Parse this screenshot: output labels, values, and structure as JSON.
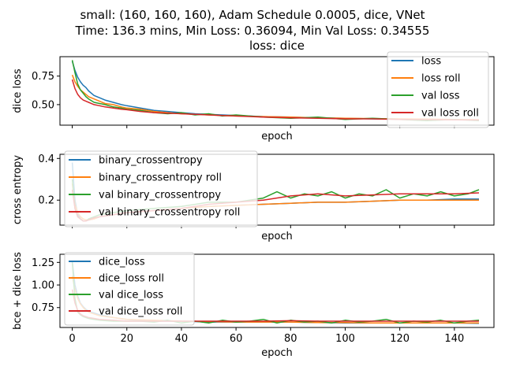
{
  "figure": {
    "title_line1": "small: (160, 160, 160), Adam Schedule 0.0005, dice, VNet",
    "title_line2": "Time: 136.3 mins, Min Loss: 0.36094, Min Val Loss: 0.34555"
  },
  "chart_data": [
    {
      "type": "line",
      "title": "loss: dice",
      "xlabel": "epoch",
      "ylabel": "dice loss",
      "xlim": [
        -4.5,
        154.5
      ],
      "ylim": [
        0.32,
        0.92
      ],
      "xticks": [
        0,
        20,
        40,
        60,
        80,
        100,
        120,
        140
      ],
      "xtick_labels": [],
      "yticks": [
        0.5,
        0.75
      ],
      "ytick_labels": [
        "0.50",
        "0.75"
      ],
      "legend_position": "top-right",
      "series": [
        {
          "name": "loss",
          "color": "#1f77b4",
          "x": [
            0,
            1,
            2,
            3,
            4,
            5,
            6,
            8,
            10,
            12,
            15,
            18,
            20,
            25,
            30,
            35,
            40,
            45,
            50,
            55,
            60,
            70,
            80,
            90,
            100,
            110,
            120,
            130,
            140,
            149
          ],
          "values": [
            0.88,
            0.8,
            0.74,
            0.7,
            0.67,
            0.65,
            0.62,
            0.58,
            0.56,
            0.54,
            0.52,
            0.5,
            0.49,
            0.47,
            0.45,
            0.44,
            0.43,
            0.42,
            0.415,
            0.41,
            0.405,
            0.395,
            0.39,
            0.385,
            0.38,
            0.375,
            0.372,
            0.37,
            0.368,
            0.365
          ]
        },
        {
          "name": "loss roll",
          "color": "#ff7f0e",
          "x": [
            0,
            1,
            2,
            3,
            4,
            5,
            6,
            8,
            10,
            12,
            15,
            18,
            20,
            25,
            30,
            35,
            40,
            45,
            50,
            55,
            60,
            70,
            80,
            90,
            100,
            110,
            120,
            130,
            140,
            149
          ],
          "values": [
            0.76,
            0.7,
            0.66,
            0.63,
            0.61,
            0.59,
            0.57,
            0.55,
            0.53,
            0.51,
            0.5,
            0.48,
            0.47,
            0.46,
            0.44,
            0.43,
            0.42,
            0.415,
            0.41,
            0.405,
            0.4,
            0.395,
            0.39,
            0.385,
            0.38,
            0.378,
            0.375,
            0.373,
            0.37,
            0.368
          ]
        },
        {
          "name": "val loss",
          "color": "#2ca02c",
          "x": [
            0,
            1,
            2,
            3,
            4,
            5,
            6,
            8,
            10,
            12,
            15,
            18,
            20,
            25,
            30,
            35,
            40,
            45,
            50,
            55,
            60,
            70,
            80,
            90,
            100,
            110,
            120,
            130,
            140,
            149
          ],
          "values": [
            0.89,
            0.78,
            0.68,
            0.63,
            0.6,
            0.57,
            0.55,
            0.52,
            0.51,
            0.5,
            0.48,
            0.47,
            0.46,
            0.45,
            0.43,
            0.42,
            0.43,
            0.41,
            0.42,
            0.4,
            0.41,
            0.39,
            0.38,
            0.39,
            0.37,
            0.38,
            0.37,
            0.36,
            0.37,
            0.36
          ]
        },
        {
          "name": "val loss roll",
          "color": "#d62728",
          "x": [
            0,
            1,
            2,
            3,
            4,
            5,
            6,
            8,
            10,
            12,
            15,
            18,
            20,
            25,
            30,
            35,
            40,
            45,
            50,
            55,
            60,
            70,
            80,
            90,
            100,
            110,
            120,
            130,
            140,
            149
          ],
          "values": [
            0.72,
            0.64,
            0.59,
            0.56,
            0.54,
            0.53,
            0.52,
            0.5,
            0.49,
            0.48,
            0.47,
            0.46,
            0.455,
            0.44,
            0.43,
            0.425,
            0.42,
            0.415,
            0.41,
            0.405,
            0.4,
            0.39,
            0.385,
            0.38,
            0.375,
            0.375,
            0.37,
            0.368,
            0.366,
            0.365
          ]
        }
      ]
    },
    {
      "type": "line",
      "title": "",
      "xlabel": "epoch",
      "ylabel": "cross entropy",
      "xlim": [
        -4.5,
        154.5
      ],
      "ylim": [
        0.08,
        0.42
      ],
      "xticks": [
        0,
        20,
        40,
        60,
        80,
        100,
        120,
        140
      ],
      "xtick_labels": [],
      "yticks": [
        0.2,
        0.4
      ],
      "ytick_labels": [
        "0.2",
        "0.4"
      ],
      "legend_position": "top-left",
      "series": [
        {
          "name": "binary_crossentropy",
          "color": "#1f77b4",
          "x": [
            0,
            1,
            2,
            3,
            4,
            5,
            6,
            8,
            10,
            15,
            20,
            30,
            40,
            50,
            60,
            70,
            80,
            90,
            100,
            110,
            120,
            130,
            140,
            149
          ],
          "values": [
            0.38,
            0.2,
            0.13,
            0.11,
            0.1,
            0.1,
            0.105,
            0.11,
            0.12,
            0.13,
            0.14,
            0.15,
            0.16,
            0.17,
            0.175,
            0.18,
            0.185,
            0.19,
            0.19,
            0.195,
            0.2,
            0.2,
            0.205,
            0.205
          ]
        },
        {
          "name": "binary_crossentropy roll",
          "color": "#ff7f0e",
          "x": [
            0,
            1,
            2,
            3,
            4,
            5,
            6,
            8,
            10,
            15,
            20,
            30,
            40,
            50,
            60,
            70,
            80,
            90,
            100,
            110,
            120,
            130,
            140,
            149
          ],
          "values": [
            0.28,
            0.18,
            0.14,
            0.12,
            0.11,
            0.105,
            0.105,
            0.11,
            0.12,
            0.13,
            0.14,
            0.15,
            0.16,
            0.17,
            0.175,
            0.18,
            0.185,
            0.19,
            0.19,
            0.195,
            0.2,
            0.2,
            0.2,
            0.2
          ]
        },
        {
          "name": "val binary_crossentropy",
          "color": "#2ca02c",
          "x": [
            0,
            1,
            2,
            3,
            4,
            5,
            6,
            8,
            10,
            15,
            20,
            30,
            40,
            50,
            60,
            70,
            75,
            80,
            85,
            90,
            95,
            100,
            105,
            110,
            115,
            120,
            125,
            130,
            135,
            140,
            145,
            149
          ],
          "values": [
            0.3,
            0.16,
            0.12,
            0.11,
            0.1,
            0.1,
            0.11,
            0.12,
            0.13,
            0.14,
            0.15,
            0.16,
            0.17,
            0.19,
            0.19,
            0.21,
            0.24,
            0.21,
            0.23,
            0.22,
            0.24,
            0.21,
            0.23,
            0.22,
            0.25,
            0.21,
            0.23,
            0.22,
            0.24,
            0.22,
            0.23,
            0.25
          ]
        },
        {
          "name": "val binary_crossentropy roll",
          "color": "#d62728",
          "x": [
            0,
            1,
            2,
            3,
            4,
            5,
            6,
            8,
            10,
            15,
            20,
            30,
            40,
            50,
            60,
            70,
            80,
            90,
            100,
            110,
            120,
            130,
            140,
            149
          ],
          "values": [
            0.25,
            0.16,
            0.12,
            0.11,
            0.1,
            0.1,
            0.105,
            0.115,
            0.12,
            0.13,
            0.14,
            0.15,
            0.16,
            0.18,
            0.19,
            0.2,
            0.22,
            0.23,
            0.22,
            0.225,
            0.23,
            0.23,
            0.23,
            0.235
          ]
        }
      ]
    },
    {
      "type": "line",
      "title": "",
      "xlabel": "epoch",
      "ylabel": "bce + dice loss",
      "xlim": [
        -4.5,
        154.5
      ],
      "ylim": [
        0.53,
        1.34
      ],
      "xticks": [
        0,
        20,
        40,
        60,
        80,
        100,
        120,
        140
      ],
      "xtick_labels": [
        "0",
        "20",
        "40",
        "60",
        "80",
        "100",
        "120",
        "140"
      ],
      "yticks": [
        0.75,
        1.0,
        1.25
      ],
      "ytick_labels": [
        "0.75",
        "1.00",
        "1.25"
      ],
      "legend_position": "top-left",
      "series": [
        {
          "name": "dice_loss",
          "color": "#1f77b4",
          "x": [
            0,
            1,
            2,
            3,
            4,
            5,
            6,
            8,
            10,
            15,
            20,
            30,
            40,
            50,
            60,
            70,
            80,
            90,
            100,
            110,
            120,
            130,
            140,
            149
          ],
          "values": [
            1.26,
            1.0,
            0.88,
            0.8,
            0.76,
            0.73,
            0.71,
            0.69,
            0.67,
            0.64,
            0.62,
            0.6,
            0.6,
            0.59,
            0.59,
            0.59,
            0.59,
            0.585,
            0.58,
            0.58,
            0.58,
            0.58,
            0.58,
            0.575
          ]
        },
        {
          "name": "dice_loss roll",
          "color": "#ff7f0e",
          "x": [
            0,
            1,
            2,
            3,
            4,
            5,
            6,
            8,
            10,
            15,
            20,
            30,
            40,
            50,
            60,
            70,
            80,
            90,
            100,
            110,
            120,
            130,
            140,
            149
          ],
          "values": [
            1.1,
            0.95,
            0.85,
            0.79,
            0.75,
            0.72,
            0.7,
            0.68,
            0.66,
            0.64,
            0.62,
            0.61,
            0.6,
            0.595,
            0.59,
            0.59,
            0.59,
            0.585,
            0.585,
            0.58,
            0.58,
            0.58,
            0.58,
            0.58
          ]
        },
        {
          "name": "val dice_loss",
          "color": "#2ca02c",
          "x": [
            0,
            1,
            2,
            3,
            4,
            5,
            6,
            8,
            10,
            15,
            20,
            25,
            30,
            35,
            40,
            45,
            50,
            55,
            60,
            65,
            70,
            75,
            80,
            85,
            90,
            95,
            100,
            105,
            110,
            115,
            120,
            125,
            130,
            135,
            140,
            145,
            149
          ],
          "values": [
            1.25,
            0.85,
            0.7,
            0.67,
            0.65,
            0.64,
            0.63,
            0.62,
            0.61,
            0.6,
            0.6,
            0.6,
            0.59,
            0.61,
            0.58,
            0.6,
            0.58,
            0.61,
            0.59,
            0.6,
            0.62,
            0.58,
            0.61,
            0.59,
            0.6,
            0.58,
            0.61,
            0.59,
            0.6,
            0.62,
            0.58,
            0.6,
            0.59,
            0.61,
            0.58,
            0.6,
            0.61
          ]
        },
        {
          "name": "val dice_loss roll",
          "color": "#d62728",
          "x": [
            0,
            1,
            2,
            3,
            4,
            5,
            6,
            8,
            10,
            15,
            20,
            30,
            40,
            50,
            60,
            70,
            80,
            90,
            100,
            110,
            120,
            130,
            140,
            149
          ],
          "values": [
            0.95,
            0.8,
            0.72,
            0.68,
            0.66,
            0.65,
            0.64,
            0.63,
            0.62,
            0.61,
            0.6,
            0.6,
            0.6,
            0.6,
            0.6,
            0.6,
            0.605,
            0.6,
            0.6,
            0.6,
            0.6,
            0.6,
            0.6,
            0.6
          ]
        }
      ]
    }
  ]
}
